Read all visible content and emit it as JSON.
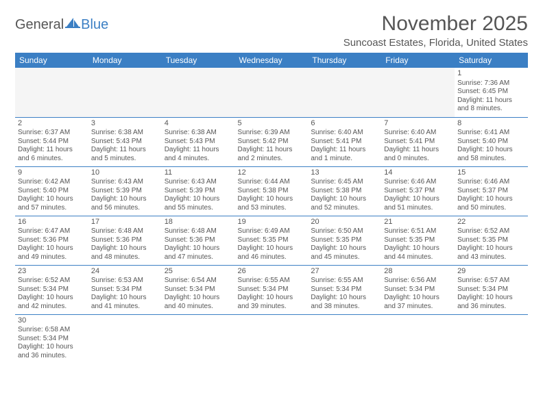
{
  "brand": {
    "part1": "General",
    "part2": "Blue",
    "sail_color": "#3b7fc4"
  },
  "title": "November 2025",
  "subtitle": "Suncoast Estates, Florida, United States",
  "header_bg": "#3b7fc4",
  "header_fg": "#ffffff",
  "border_color": "#3b7fc4",
  "day_headers": [
    "Sunday",
    "Monday",
    "Tuesday",
    "Wednesday",
    "Thursday",
    "Friday",
    "Saturday"
  ],
  "weeks": [
    [
      null,
      null,
      null,
      null,
      null,
      null,
      {
        "n": "1",
        "sr": "7:36 AM",
        "ss": "6:45 PM",
        "dl": "11 hours and 8 minutes."
      }
    ],
    [
      {
        "n": "2",
        "sr": "6:37 AM",
        "ss": "5:44 PM",
        "dl": "11 hours and 6 minutes."
      },
      {
        "n": "3",
        "sr": "6:38 AM",
        "ss": "5:43 PM",
        "dl": "11 hours and 5 minutes."
      },
      {
        "n": "4",
        "sr": "6:38 AM",
        "ss": "5:43 PM",
        "dl": "11 hours and 4 minutes."
      },
      {
        "n": "5",
        "sr": "6:39 AM",
        "ss": "5:42 PM",
        "dl": "11 hours and 2 minutes."
      },
      {
        "n": "6",
        "sr": "6:40 AM",
        "ss": "5:41 PM",
        "dl": "11 hours and 1 minute."
      },
      {
        "n": "7",
        "sr": "6:40 AM",
        "ss": "5:41 PM",
        "dl": "11 hours and 0 minutes."
      },
      {
        "n": "8",
        "sr": "6:41 AM",
        "ss": "5:40 PM",
        "dl": "10 hours and 58 minutes."
      }
    ],
    [
      {
        "n": "9",
        "sr": "6:42 AM",
        "ss": "5:40 PM",
        "dl": "10 hours and 57 minutes."
      },
      {
        "n": "10",
        "sr": "6:43 AM",
        "ss": "5:39 PM",
        "dl": "10 hours and 56 minutes."
      },
      {
        "n": "11",
        "sr": "6:43 AM",
        "ss": "5:39 PM",
        "dl": "10 hours and 55 minutes."
      },
      {
        "n": "12",
        "sr": "6:44 AM",
        "ss": "5:38 PM",
        "dl": "10 hours and 53 minutes."
      },
      {
        "n": "13",
        "sr": "6:45 AM",
        "ss": "5:38 PM",
        "dl": "10 hours and 52 minutes."
      },
      {
        "n": "14",
        "sr": "6:46 AM",
        "ss": "5:37 PM",
        "dl": "10 hours and 51 minutes."
      },
      {
        "n": "15",
        "sr": "6:46 AM",
        "ss": "5:37 PM",
        "dl": "10 hours and 50 minutes."
      }
    ],
    [
      {
        "n": "16",
        "sr": "6:47 AM",
        "ss": "5:36 PM",
        "dl": "10 hours and 49 minutes."
      },
      {
        "n": "17",
        "sr": "6:48 AM",
        "ss": "5:36 PM",
        "dl": "10 hours and 48 minutes."
      },
      {
        "n": "18",
        "sr": "6:48 AM",
        "ss": "5:36 PM",
        "dl": "10 hours and 47 minutes."
      },
      {
        "n": "19",
        "sr": "6:49 AM",
        "ss": "5:35 PM",
        "dl": "10 hours and 46 minutes."
      },
      {
        "n": "20",
        "sr": "6:50 AM",
        "ss": "5:35 PM",
        "dl": "10 hours and 45 minutes."
      },
      {
        "n": "21",
        "sr": "6:51 AM",
        "ss": "5:35 PM",
        "dl": "10 hours and 44 minutes."
      },
      {
        "n": "22",
        "sr": "6:52 AM",
        "ss": "5:35 PM",
        "dl": "10 hours and 43 minutes."
      }
    ],
    [
      {
        "n": "23",
        "sr": "6:52 AM",
        "ss": "5:34 PM",
        "dl": "10 hours and 42 minutes."
      },
      {
        "n": "24",
        "sr": "6:53 AM",
        "ss": "5:34 PM",
        "dl": "10 hours and 41 minutes."
      },
      {
        "n": "25",
        "sr": "6:54 AM",
        "ss": "5:34 PM",
        "dl": "10 hours and 40 minutes."
      },
      {
        "n": "26",
        "sr": "6:55 AM",
        "ss": "5:34 PM",
        "dl": "10 hours and 39 minutes."
      },
      {
        "n": "27",
        "sr": "6:55 AM",
        "ss": "5:34 PM",
        "dl": "10 hours and 38 minutes."
      },
      {
        "n": "28",
        "sr": "6:56 AM",
        "ss": "5:34 PM",
        "dl": "10 hours and 37 minutes."
      },
      {
        "n": "29",
        "sr": "6:57 AM",
        "ss": "5:34 PM",
        "dl": "10 hours and 36 minutes."
      }
    ],
    [
      {
        "n": "30",
        "sr": "6:58 AM",
        "ss": "5:34 PM",
        "dl": "10 hours and 36 minutes."
      },
      null,
      null,
      null,
      null,
      null,
      null
    ]
  ],
  "labels": {
    "sunrise": "Sunrise: ",
    "sunset": "Sunset: ",
    "daylight": "Daylight: "
  }
}
